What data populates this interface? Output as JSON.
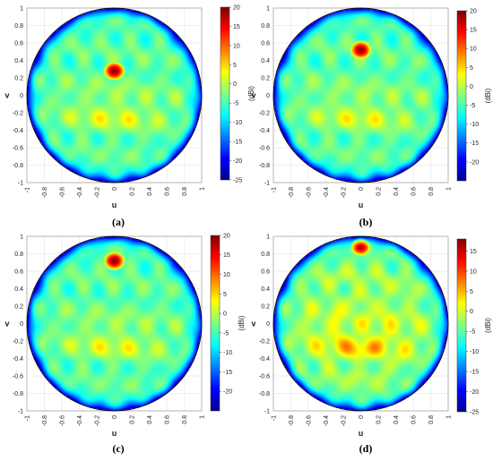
{
  "chart_data": [
    {
      "type": "heatmap",
      "caption": "(a)",
      "xlabel": "u",
      "ylabel": "v",
      "colorbar_label": "(dBi)",
      "xlim": [
        -1,
        1
      ],
      "ylim": [
        -1,
        1
      ],
      "xticks": [
        -1,
        -0.8,
        -0.6,
        -0.4,
        -0.2,
        0,
        0.2,
        0.4,
        0.6,
        0.8,
        1
      ],
      "yticks": [
        -1,
        -0.8,
        -0.6,
        -0.4,
        -0.2,
        0,
        0.2,
        0.4,
        0.6,
        0.8,
        1
      ],
      "colorbar_range": [
        -25,
        20
      ],
      "colorbar_ticks": [
        -25,
        -20,
        -15,
        -10,
        -5,
        0,
        5,
        10,
        15,
        20
      ],
      "peak": {
        "u": 0,
        "v": 0.28,
        "value_dbi": 20
      },
      "grid": true
    },
    {
      "type": "heatmap",
      "caption": "(b)",
      "xlabel": "u",
      "ylabel": "v",
      "colorbar_label": "(dBi)",
      "xlim": [
        -1,
        1
      ],
      "ylim": [
        -1,
        1
      ],
      "xticks": [
        -1,
        -0.8,
        -0.6,
        -0.4,
        -0.2,
        0,
        0.2,
        0.4,
        0.6,
        0.8,
        1
      ],
      "yticks": [
        -1,
        -0.8,
        -0.6,
        -0.4,
        -0.2,
        0,
        0.2,
        0.4,
        0.6,
        0.8,
        1
      ],
      "colorbar_range": [
        -25,
        20
      ],
      "colorbar_ticks": [
        -20,
        -15,
        -10,
        -5,
        0,
        5,
        10,
        15,
        20
      ],
      "peak": {
        "u": 0,
        "v": 0.52,
        "value_dbi": 20
      },
      "grid": true
    },
    {
      "type": "heatmap",
      "caption": "(c)",
      "xlabel": "u",
      "ylabel": "v",
      "colorbar_label": "(dBi)",
      "xlim": [
        -1,
        1
      ],
      "ylim": [
        -1,
        1
      ],
      "xticks": [
        -1,
        -0.8,
        -0.6,
        -0.4,
        -0.2,
        0,
        0.2,
        0.4,
        0.6,
        0.8,
        1
      ],
      "yticks": [
        -1,
        -0.8,
        -0.6,
        -0.4,
        -0.2,
        0,
        0.2,
        0.4,
        0.6,
        0.8,
        1
      ],
      "colorbar_range": [
        -25,
        20
      ],
      "colorbar_ticks": [
        -20,
        -15,
        -10,
        -5,
        0,
        5,
        10,
        15,
        20
      ],
      "peak": {
        "u": 0,
        "v": 0.72,
        "value_dbi": 20
      },
      "grid": true
    },
    {
      "type": "heatmap",
      "caption": "(d)",
      "xlabel": "u",
      "ylabel": "v",
      "colorbar_label": "(dBi)",
      "xlim": [
        -1,
        1
      ],
      "ylim": [
        -1,
        1
      ],
      "xticks": [
        -1,
        -0.8,
        -0.6,
        -0.4,
        -0.2,
        0,
        0.2,
        0.4,
        0.6,
        0.8,
        1
      ],
      "yticks": [
        -1,
        -0.8,
        -0.6,
        -0.4,
        -0.2,
        0,
        0.2,
        0.4,
        0.6,
        0.8,
        1
      ],
      "colorbar_range": [
        -25,
        18
      ],
      "colorbar_ticks": [
        -25,
        -20,
        -15,
        -10,
        -5,
        0,
        5,
        10,
        15
      ],
      "peak": {
        "u": 0,
        "v": 0.88,
        "value_dbi": 18
      },
      "grid": true
    }
  ],
  "colormap": [
    "#00008f",
    "#0000ff",
    "#0080ff",
    "#00ffff",
    "#80ff80",
    "#ffff00",
    "#ff8000",
    "#ff0000",
    "#800000"
  ]
}
